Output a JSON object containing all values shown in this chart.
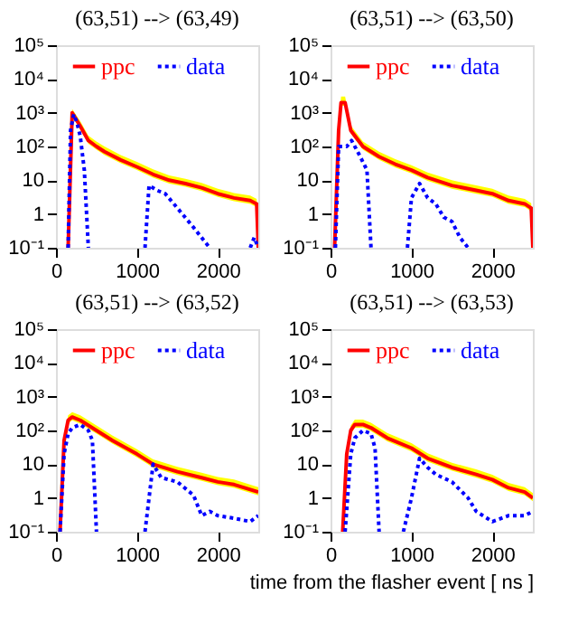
{
  "chart_data": [
    {
      "type": "line",
      "title": "(63,51) --> (63,49)",
      "log": "y",
      "legend": "top",
      "xlim": [
        0,
        2500
      ],
      "xticks": [
        0,
        1000,
        2000
      ],
      "ylim": [
        0.1,
        100000
      ],
      "yticks": [
        {
          "value": 0.1,
          "label": "10⁻¹"
        },
        1,
        10,
        {
          "value": 100,
          "label": "10²"
        },
        {
          "value": 1000,
          "label": "10³"
        },
        {
          "value": 10000,
          "label": "10⁴"
        },
        {
          "value": 100000,
          "label": "10⁵"
        }
      ],
      "series": [
        {
          "name": "ppc",
          "color": "#ff0000",
          "line_style": "solid",
          "x": [
            150,
            200,
            300,
            400,
            500,
            600,
            800,
            1000,
            1200,
            1400,
            1600,
            1800,
            2000,
            2200,
            2400,
            2480,
            2500
          ],
          "values": [
            0.1,
            1000,
            400,
            150,
            100,
            70,
            40,
            25,
            15,
            10,
            8,
            6,
            4,
            3,
            2.5,
            2,
            0.1
          ],
          "lower": [
            0.1,
            800,
            320,
            120,
            80,
            56,
            32,
            20,
            12,
            8,
            6.4,
            4.8,
            3.2,
            2.4,
            2,
            1.6,
            0.1
          ],
          "upper": [
            0.1,
            1300,
            560,
            210,
            140,
            100,
            56,
            35,
            21,
            14,
            11,
            8.4,
            5.6,
            4.2,
            3.5,
            2.8,
            0.1
          ]
        },
        {
          "name": "data",
          "color": "#0000ff",
          "line_style": "dotted",
          "x": [
            150,
            180,
            220,
            260,
            300,
            350,
            400,
            700,
            1100,
            1150,
            1250,
            1350,
            1500,
            1700,
            1800,
            1900,
            2200,
            2400,
            2450,
            2500
          ],
          "values": [
            0.1,
            300,
            900,
            500,
            200,
            20,
            0.1,
            null,
            0.1,
            7,
            5,
            4,
            1.5,
            0.4,
            0.2,
            0.1,
            null,
            0.1,
            0.2,
            0.1
          ]
        }
      ]
    },
    {
      "type": "line",
      "title": "(63,51) --> (63,50)",
      "log": "y",
      "legend": "top",
      "xlim": [
        0,
        2500
      ],
      "xticks": [
        0,
        1000,
        2000
      ],
      "ylim": [
        0.1,
        100000
      ],
      "yticks": [
        {
          "value": 0.1,
          "label": "10⁻¹"
        },
        1,
        10,
        {
          "value": 100,
          "label": "10²"
        },
        {
          "value": 1000,
          "label": "10³"
        },
        {
          "value": 10000,
          "label": "10⁴"
        },
        {
          "value": 100000,
          "label": "10⁵"
        }
      ],
      "series": [
        {
          "name": "ppc",
          "color": "#ff0000",
          "line_style": "solid",
          "x": [
            50,
            100,
            130,
            180,
            250,
            400,
            600,
            800,
            1000,
            1200,
            1500,
            1800,
            2000,
            2200,
            2400,
            2480,
            2500
          ],
          "values": [
            0.1,
            300,
            2000,
            2000,
            300,
            100,
            50,
            30,
            20,
            12,
            7,
            5,
            4,
            2.5,
            2,
            1.5,
            0.1
          ],
          "lower": [
            0.1,
            240,
            1600,
            1600,
            240,
            80,
            40,
            24,
            16,
            9.6,
            5.6,
            4,
            3.2,
            2,
            1.6,
            1.2,
            0.1
          ],
          "upper": [
            0.1,
            420,
            3000,
            3000,
            420,
            140,
            70,
            42,
            28,
            17,
            10,
            7,
            5.6,
            3.5,
            2.8,
            2.1,
            0.1
          ]
        },
        {
          "name": "data",
          "color": "#0000ff",
          "line_style": "dotted",
          "x": [
            60,
            100,
            200,
            260,
            350,
            450,
            500,
            700,
            950,
            1000,
            1100,
            1200,
            1300,
            1400,
            1500,
            1600,
            1700
          ],
          "values": [
            0.1,
            100,
            100,
            150,
            60,
            20,
            0.1,
            null,
            0.1,
            3,
            8,
            3,
            2,
            0.8,
            0.6,
            0.2,
            0.1
          ]
        }
      ]
    },
    {
      "type": "line",
      "title": "(63,51) --> (63,52)",
      "log": "y",
      "legend": "top",
      "xlim": [
        0,
        2500
      ],
      "xticks": [
        0,
        1000,
        2000
      ],
      "ylim": [
        0.1,
        100000
      ],
      "yticks": [
        {
          "value": 0.1,
          "label": "10⁻¹"
        },
        1,
        10,
        {
          "value": 100,
          "label": "10²"
        },
        {
          "value": 1000,
          "label": "10³"
        },
        {
          "value": 10000,
          "label": "10⁴"
        },
        {
          "value": 100000,
          "label": "10⁵"
        }
      ],
      "series": [
        {
          "name": "ppc",
          "color": "#ff0000",
          "line_style": "solid",
          "x": [
            50,
            100,
            150,
            200,
            300,
            500,
            700,
            1000,
            1200,
            1500,
            1800,
            2000,
            2200,
            2500
          ],
          "values": [
            0.1,
            50,
            200,
            250,
            200,
            100,
            50,
            20,
            10,
            6,
            4,
            3,
            2.5,
            1.5
          ],
          "lower": [
            0.1,
            40,
            160,
            200,
            160,
            80,
            40,
            16,
            8,
            4.8,
            3.2,
            2.4,
            2,
            1.2
          ],
          "upper": [
            0.1,
            70,
            280,
            350,
            280,
            140,
            70,
            28,
            14,
            8.4,
            5.6,
            4.2,
            3.5,
            2.1
          ]
        },
        {
          "name": "data",
          "color": "#0000ff",
          "line_style": "dotted",
          "x": [
            50,
            100,
            150,
            200,
            300,
            400,
            450,
            500,
            800,
            1100,
            1200,
            1300,
            1500,
            1700,
            1800,
            1900,
            2000,
            2200,
            2400,
            2500
          ],
          "values": [
            0.1,
            20,
            80,
            120,
            150,
            100,
            50,
            0.1,
            null,
            0.1,
            10,
            4,
            3,
            1.2,
            0.3,
            0.4,
            0.3,
            0.25,
            0.2,
            0.3
          ]
        }
      ]
    },
    {
      "type": "line",
      "title": "(63,51) --> (63,53)",
      "xlabel": "time from the flasher event [ ns ]",
      "log": "y",
      "legend": "top",
      "xlim": [
        0,
        2500
      ],
      "xticks": [
        0,
        1000,
        2000
      ],
      "ylim": [
        0.1,
        100000
      ],
      "yticks": [
        {
          "value": 0.1,
          "label": "10⁻¹"
        },
        1,
        10,
        {
          "value": 100,
          "label": "10²"
        },
        {
          "value": 1000,
          "label": "10³"
        },
        {
          "value": 10000,
          "label": "10⁴"
        },
        {
          "value": 100000,
          "label": "10⁵"
        }
      ],
      "series": [
        {
          "name": "ppc",
          "color": "#ff0000",
          "line_style": "solid",
          "x": [
            150,
            200,
            250,
            300,
            400,
            500,
            700,
            1000,
            1200,
            1500,
            1800,
            2000,
            2200,
            2400,
            2500
          ],
          "values": [
            0.1,
            20,
            100,
            150,
            150,
            120,
            60,
            30,
            15,
            8,
            5,
            3.5,
            2,
            1.5,
            1
          ],
          "lower": [
            0.1,
            16,
            80,
            120,
            120,
            96,
            48,
            24,
            12,
            6.4,
            4,
            2.8,
            1.6,
            1.2,
            0.8
          ],
          "upper": [
            0.1,
            28,
            140,
            210,
            210,
            170,
            84,
            42,
            21,
            11,
            7,
            4.9,
            2.8,
            2.1,
            1.4
          ]
        },
        {
          "name": "data",
          "color": "#0000ff",
          "line_style": "dotted",
          "x": [
            180,
            250,
            300,
            400,
            500,
            550,
            600,
            750,
            900,
            1000,
            1100,
            1200,
            1300,
            1500,
            1700,
            1800,
            2000,
            2200,
            2400,
            2500
          ],
          "values": [
            0.1,
            20,
            60,
            100,
            80,
            30,
            0.1,
            null,
            0.1,
            1,
            15,
            8,
            5,
            3,
            1,
            0.4,
            0.2,
            0.3,
            0.3,
            0.4
          ]
        }
      ]
    }
  ]
}
